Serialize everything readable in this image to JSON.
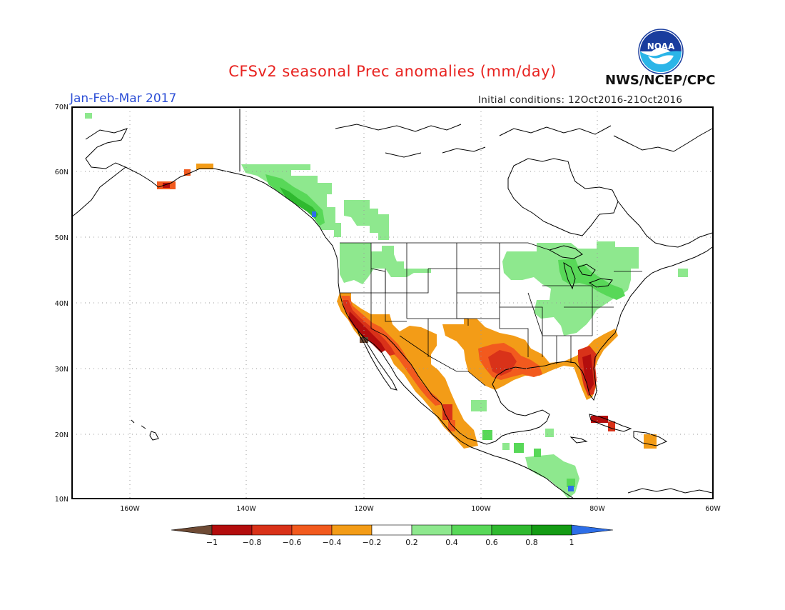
{
  "header": {
    "title": "CFSv2 seasonal Prec anomalies (mm/day)",
    "period": "Jan-Feb-Mar 2017",
    "initial_conditions": "Initial conditions: 12Oct2016-21Oct2016",
    "agency": "NWS/NCEP/CPC",
    "logo_text": "NOAA"
  },
  "map": {
    "lat_labels": [
      "70N",
      "60N",
      "50N",
      "40N",
      "30N",
      "20N",
      "10N"
    ],
    "lon_labels": [
      "160W",
      "140W",
      "120W",
      "100W",
      "80W",
      "60W"
    ],
    "grid_lines": "dotted"
  },
  "colorbar": {
    "labels": [
      "-1",
      "-0.8",
      "-0.6",
      "-0.4",
      "-0.2",
      "0.2",
      "0.4",
      "0.6",
      "0.8",
      "1"
    ],
    "colors": [
      "#6e4a34",
      "#b30d0d",
      "#d93219",
      "#f25a1e",
      "#f39c17",
      "#ffffff",
      "#8ee88e",
      "#58d858",
      "#2fb92f",
      "#149b14",
      "#2d6ee8"
    ]
  }
}
